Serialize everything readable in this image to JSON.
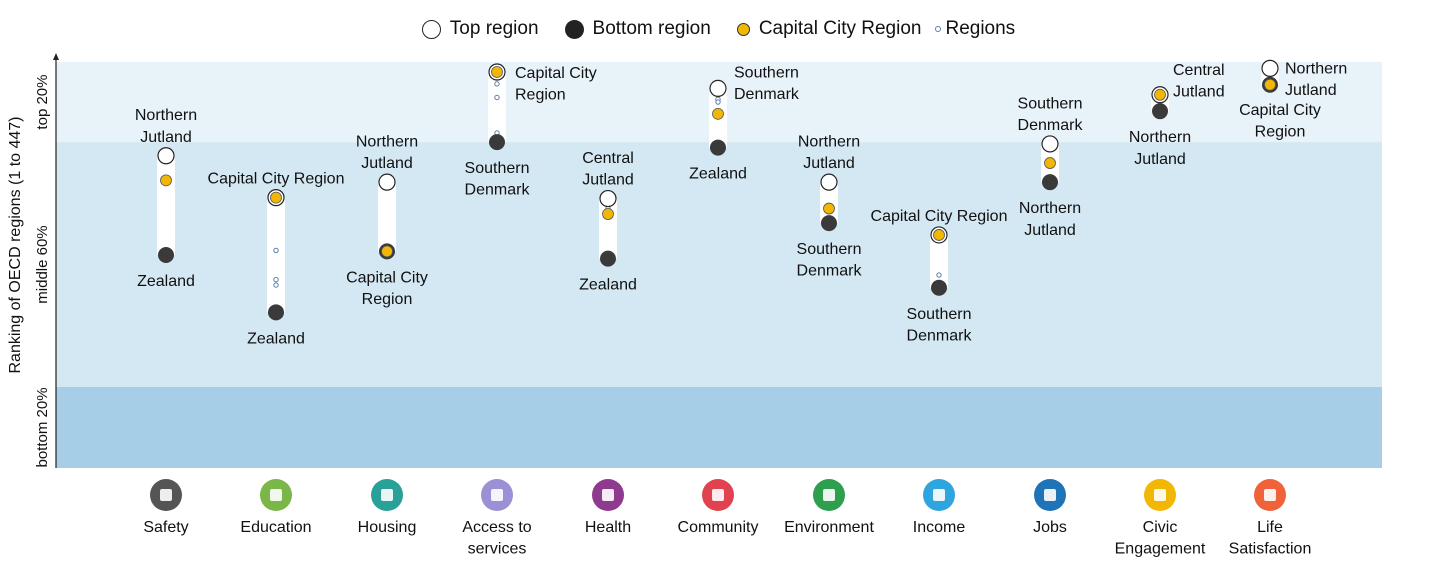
{
  "legend": {
    "top": "Top region",
    "bottom": "Bottom region",
    "capital": "Capital City Region",
    "regions": "Regions"
  },
  "colors": {
    "band_top": "#e8f2f9",
    "band_middle": "#d4e8f3",
    "band_bottom": "#a6cfe7",
    "capital": "#f2b705",
    "dot_dark": "#3a3a3a",
    "small_region": "#5a7fae"
  },
  "chart_data": {
    "type": "scatter",
    "ylabel": "Ranking of OECD regions (1 to 447)",
    "ylim": [
      447,
      1
    ],
    "bands": [
      {
        "label": "top 20%",
        "from": 1,
        "to": 89
      },
      {
        "label": "middle 60%",
        "from": 89,
        "to": 358
      },
      {
        "label": "bottom 20%",
        "from": 358,
        "to": 447
      }
    ],
    "categories": [
      "Safety",
      "Education",
      "Housing",
      "Access to services",
      "Health",
      "Community",
      "Environment",
      "Income",
      "Jobs",
      "Civic Engagement",
      "Life Satisfaction"
    ],
    "category_lines": [
      [
        "Safety"
      ],
      [
        "Education"
      ],
      [
        "Housing"
      ],
      [
        "Access to",
        "services"
      ],
      [
        "Health"
      ],
      [
        "Community"
      ],
      [
        "Environment"
      ],
      [
        "Income"
      ],
      [
        "Jobs"
      ],
      [
        "Civic",
        "Engagement"
      ],
      [
        "Life",
        "Satisfaction"
      ]
    ],
    "icon_names": [
      "running-person-icon",
      "book-icon",
      "house-icon",
      "services-network-icon",
      "medical-cross-icon",
      "people-group-icon",
      "tree-icon",
      "money-icon",
      "briefcase-icon",
      "ballot-box-icon",
      "heart-icon"
    ],
    "icon_colors": [
      "#555555",
      "#7ab648",
      "#2aa198",
      "#9b8fd6",
      "#8e3a8e",
      "#e0434f",
      "#2e9e4f",
      "#2fa5e0",
      "#1f73b7",
      "#f2b705",
      "#f0633a"
    ],
    "top": [
      {
        "rank": 104,
        "label": [
          "Northern",
          "Jutland"
        ]
      },
      {
        "rank": 150,
        "label": [
          "Capital City Region"
        ]
      },
      {
        "rank": 133,
        "label": [
          "Northern",
          "Jutland"
        ]
      },
      {
        "rank": 12,
        "label": [
          "Capital City",
          "Region"
        ]
      },
      {
        "rank": 151,
        "label": [
          "Central",
          "Jutland"
        ]
      },
      {
        "rank": 30,
        "label": [
          "Southern",
          "Denmark"
        ]
      },
      {
        "rank": 133,
        "label": [
          "Northern",
          "Jutland"
        ]
      },
      {
        "rank": 191,
        "label": [
          "Capital City Region"
        ]
      },
      {
        "rank": 91,
        "label": [
          "Southern",
          "Denmark"
        ]
      },
      {
        "rank": 37,
        "label": [
          "Central",
          "Jutland"
        ]
      },
      {
        "rank": 8,
        "label": [
          "Northern",
          "Jutland"
        ]
      }
    ],
    "bottom": [
      {
        "rank": 213,
        "label": [
          "Zealand"
        ]
      },
      {
        "rank": 276,
        "label": [
          "Zealand"
        ]
      },
      {
        "rank": 209,
        "label": [
          "Capital City",
          "Region"
        ]
      },
      {
        "rank": 89,
        "label": [
          "Southern",
          "Denmark"
        ]
      },
      {
        "rank": 217,
        "label": [
          "Zealand"
        ]
      },
      {
        "rank": 95,
        "label": [
          "Zealand"
        ]
      },
      {
        "rank": 178,
        "label": [
          "Southern",
          "Denmark"
        ]
      },
      {
        "rank": 249,
        "label": [
          "Southern",
          "Denmark"
        ]
      },
      {
        "rank": 133,
        "label": [
          "Northern",
          "Jutland"
        ]
      },
      {
        "rank": 55,
        "label": [
          "Northern",
          "Jutland"
        ]
      },
      {
        "rank": 26,
        "label": [
          "Capital City",
          "Region"
        ]
      }
    ],
    "capital": [
      131,
      150,
      209,
      12,
      168,
      58,
      162,
      191,
      112,
      37,
      26
    ],
    "others": [
      [],
      [
        208,
        240,
        246
      ],
      [
        137,
        139
      ],
      [
        25,
        40,
        79
      ],
      [
        162
      ],
      [
        42,
        45
      ],
      [
        159
      ],
      [
        235
      ],
      [],
      [],
      []
    ]
  }
}
